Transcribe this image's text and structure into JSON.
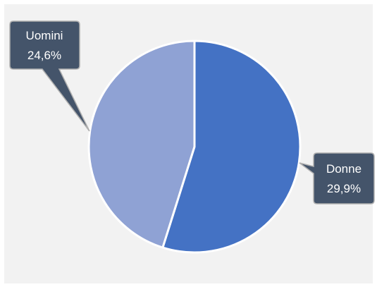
{
  "chart_data": {
    "type": "pie",
    "slices": [
      {
        "label": "Donne",
        "value": 29.9,
        "value_label": "29,9%",
        "color": "#4472c4"
      },
      {
        "label": "Uomini",
        "value": 24.6,
        "value_label": "24,6%",
        "color": "#8fa2d4"
      }
    ],
    "data_label_style": {
      "background": "#44546a",
      "text_color": "#ffffff",
      "border": "#b0b0b0"
    },
    "start_angle_deg": 0,
    "legend": "none"
  }
}
